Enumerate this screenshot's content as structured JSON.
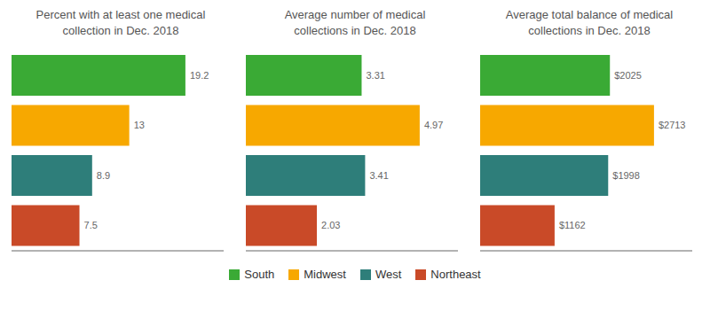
{
  "chart_data": [
    {
      "type": "bar",
      "orientation": "horizontal",
      "title": "Percent with at least one medical\ncollection in Dec. 2018",
      "categories": [
        "South",
        "Midwest",
        "West",
        "Northeast"
      ],
      "values": [
        19.2,
        13.0,
        8.9,
        7.5
      ],
      "colors": [
        "#3aaa35",
        "#f7a800",
        "#2e7e7a",
        "#c94a28"
      ],
      "xlim": [
        0,
        23.424
      ],
      "data_labels": true,
      "tick_labels": false,
      "grid": false,
      "legend": "bottom"
    },
    {
      "type": "bar",
      "orientation": "horizontal",
      "title": "Average number of medical\ncollections in Dec. 2018",
      "categories": [
        "South",
        "Midwest",
        "West",
        "Northeast"
      ],
      "values": [
        3.31,
        4.97,
        3.41,
        2.03
      ],
      "colors": [
        "#3aaa35",
        "#f7a800",
        "#2e7e7a",
        "#c94a28"
      ],
      "xlim": [
        0,
        6.0634
      ],
      "data_labels": true,
      "tick_labels": false,
      "grid": false,
      "legend": "bottom"
    },
    {
      "type": "bar",
      "orientation": "horizontal",
      "title": "Average total balance of medical\ncollections in Dec. 2018",
      "categories": [
        "South",
        "Midwest",
        "West",
        "Northeast"
      ],
      "values": [
        2025,
        2713,
        1998,
        1162
      ],
      "value_labels": [
        "$2025",
        "$2713",
        "$1998",
        "$1162"
      ],
      "colors": [
        "#3aaa35",
        "#f7a800",
        "#2e7e7a",
        "#c94a28"
      ],
      "xlim": [
        0,
        3309.86
      ],
      "data_labels": true,
      "tick_labels": false,
      "grid": false,
      "legend": "bottom"
    }
  ]
}
